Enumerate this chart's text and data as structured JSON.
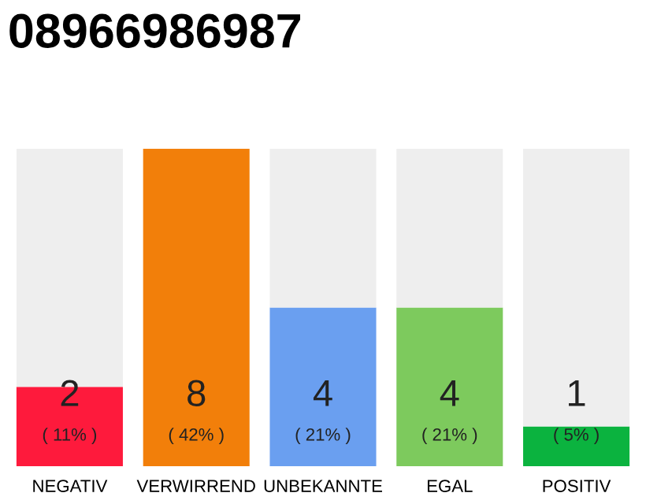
{
  "chart_data": {
    "type": "bar",
    "title": "08966986987",
    "stacked": true,
    "categories": [
      "NEGATIV",
      "VERWIRREND",
      "UNBEKANNTE",
      "EGAL",
      "POSITIV"
    ],
    "series": [
      {
        "colors": [
          "#fe1a3c",
          "#f27f0a",
          "#6a9ff0",
          "#7dca5d",
          "#0bb33f"
        ],
        "values": [
          2,
          8,
          4,
          4,
          1
        ],
        "value_labels": [
          "2\n( 11% )",
          "8\n( 42% )",
          "4\n( 21% )",
          "4\n( 21% )",
          "1\n( 5% )"
        ]
      },
      {
        "color": "#eeeeee",
        "values": [
          6,
          0,
          4,
          4,
          7
        ]
      }
    ],
    "ylim": [
      0,
      8
    ],
    "tick_labels": "x",
    "grid": false,
    "legend": false
  }
}
